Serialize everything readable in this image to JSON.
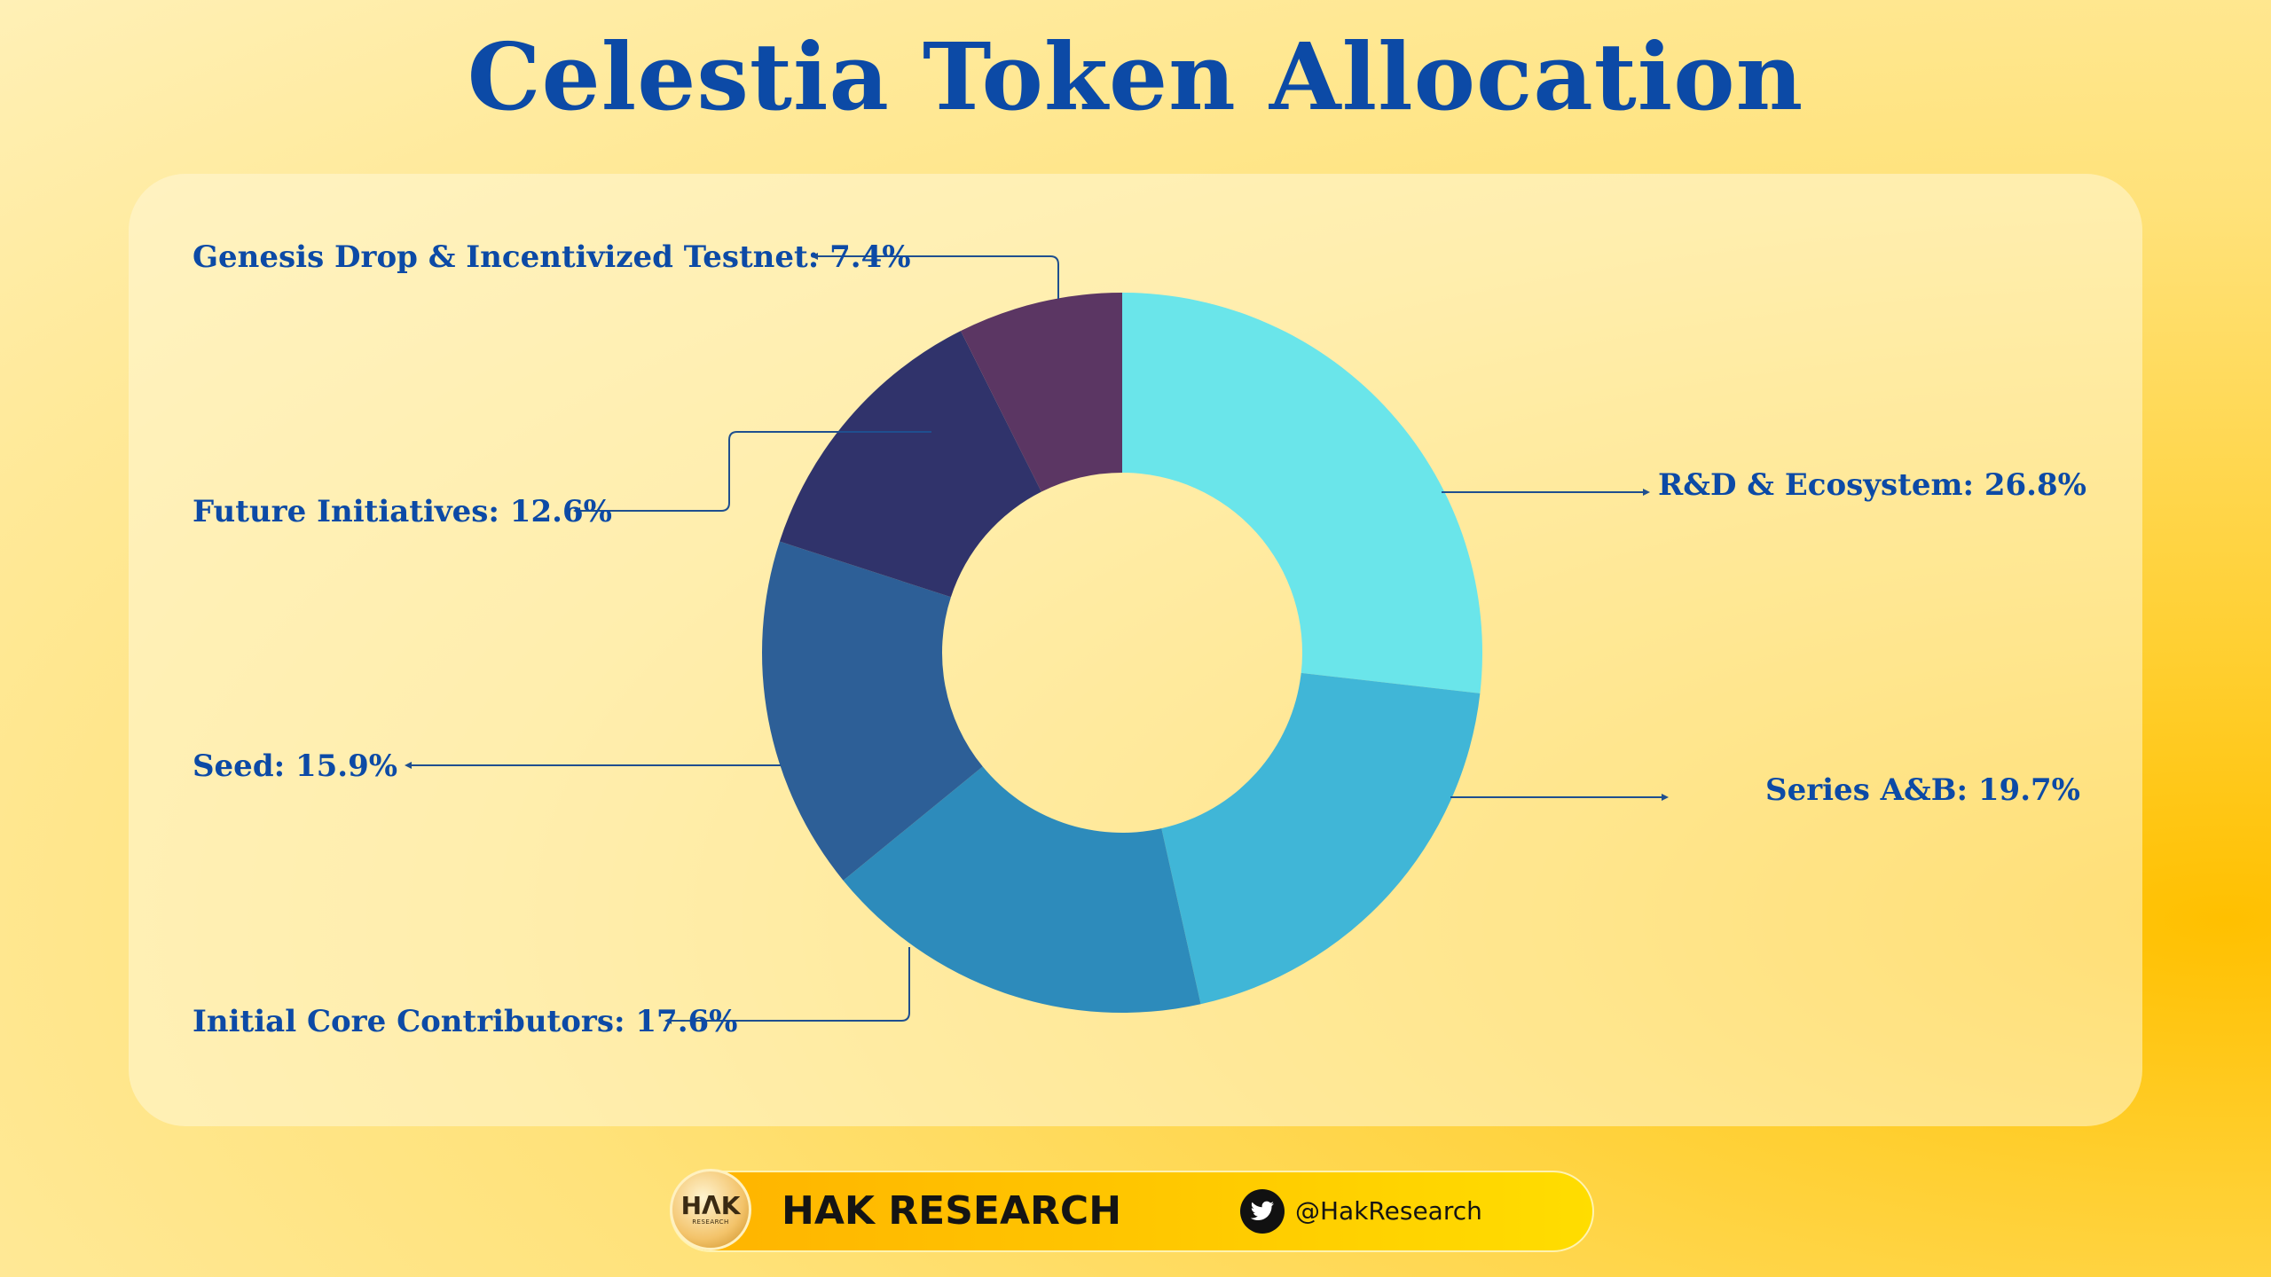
{
  "title": "Celestia Token Allocation",
  "chart_data": {
    "type": "pie",
    "title": "Celestia Token Allocation",
    "unit": "%",
    "slices": [
      {
        "label": "R&D & Ecosystem",
        "value": 26.8,
        "display": "R&D & Ecosystem: 26.8%",
        "color": "#6ae5ea"
      },
      {
        "label": "Series A&B",
        "value": 19.7,
        "display": "Series A&B: 19.7%",
        "color": "#40b6d7"
      },
      {
        "label": "Initial Core Contributors",
        "value": 17.6,
        "display": "Initial Core Contributors: 17.6%",
        "color": "#2d8bbb"
      },
      {
        "label": "Seed",
        "value": 15.9,
        "display": "Seed: 15.9%",
        "color": "#2d5f97"
      },
      {
        "label": "Future Initiatives",
        "value": 12.6,
        "display": "Future Initiatives: 12.6%",
        "color": "#30336b"
      },
      {
        "label": "Genesis Drop & Incentivized Testnet",
        "value": 7.4,
        "display": "Genesis Drop & Incentivized Testnet: 7.4%",
        "color": "#5b3663"
      }
    ]
  },
  "footer": {
    "logo_text": "HΛK",
    "logo_subtext": "RESEARCH",
    "brand_name": "HAK RESEARCH",
    "social_icon": "twitter-icon",
    "social_handle": "@HakResearch"
  }
}
